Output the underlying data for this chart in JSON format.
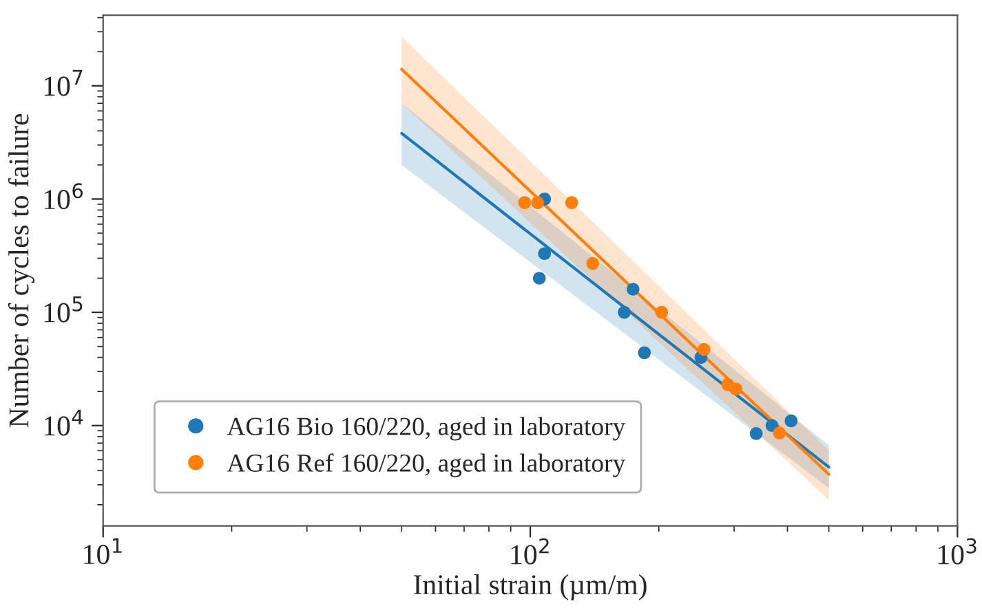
{
  "chart_data": {
    "type": "scatter",
    "xlabel": "Initial strain (µm/m)",
    "ylabel": "Number of cycles to failure",
    "log": "xy",
    "xlim": [
      10,
      1000
    ],
    "ylim": [
      1300,
      42000000
    ],
    "xticks": [
      {
        "value": 10,
        "label": "10$^{1}$"
      },
      {
        "value": 100,
        "label": "10$^{2}$"
      },
      {
        "value": 1000,
        "label": "10$^{3}$"
      }
    ],
    "yticks": [
      {
        "value": 10000,
        "label": "10$^{4}$"
      },
      {
        "value": 100000,
        "label": "10$^{5}$"
      },
      {
        "value": 1000000,
        "label": "10$^{6}$"
      },
      {
        "value": 10000000,
        "label": "10$^{7}$"
      }
    ],
    "grid": false,
    "legend": "bottom left",
    "marker": "circle",
    "series": [
      {
        "type": "line",
        "marker": "none",
        "color": "#1f77b4",
        "x": [
          50,
          500
        ],
        "values": [
          3800000,
          4300
        ],
        "lower": [
          2000000,
          2800
        ],
        "upper": [
          7000000,
          6700
        ]
      },
      {
        "type": "line",
        "marker": "none",
        "color": "#ff7f0e",
        "x": [
          50,
          500
        ],
        "values": [
          14000000,
          3700
        ],
        "lower": [
          7000000,
          2200
        ],
        "upper": [
          27000000,
          6000
        ]
      },
      {
        "name": "AG16 Bio 160/220, aged in laboratory",
        "color": "#1f77b4",
        "x": [
          108,
          108,
          105,
          166,
          174,
          185,
          251,
          338,
          368,
          408
        ],
        "values": [
          1000000,
          330000,
          200000,
          100000,
          160000,
          44000,
          40000,
          8500,
          10000,
          11000
        ]
      },
      {
        "name": "AG16 Ref 160/220, aged in laboratory",
        "color": "#ff7f0e",
        "x": [
          97,
          104,
          125,
          140,
          203,
          255,
          290,
          303,
          383
        ],
        "values": [
          930000,
          930000,
          930000,
          270000,
          100000,
          47000,
          23000,
          21000,
          8600
        ]
      }
    ]
  }
}
